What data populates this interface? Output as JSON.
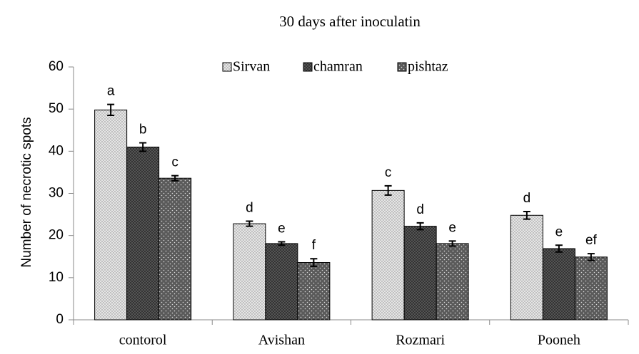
{
  "chart_data": {
    "type": "bar",
    "title": "30 days after inoculatin",
    "ylabel": "Number of necrotic spots",
    "categories": [
      "contorol",
      "Avishan",
      "Rozmari",
      "Pooneh"
    ],
    "series": [
      {
        "name": "Sirvan",
        "color": "#d9d9d9",
        "values": [
          49.8,
          22.8,
          30.7,
          24.8
        ],
        "errors": [
          1.3,
          0.6,
          1.1,
          0.9
        ],
        "letters": [
          "a",
          "d",
          "c",
          "d"
        ]
      },
      {
        "name": "chamran",
        "color": "#404040",
        "values": [
          41,
          18.1,
          22.2,
          16.9
        ],
        "errors": [
          1.0,
          0.4,
          0.8,
          0.8
        ],
        "letters": [
          "b",
          "e",
          "d",
          "e"
        ]
      },
      {
        "name": "pishtaz",
        "color": "#5a5a5a",
        "values": [
          33.6,
          13.6,
          18.1,
          14.9
        ],
        "errors": [
          0.6,
          0.9,
          0.6,
          0.8
        ],
        "letters": [
          "c",
          "f",
          "e",
          "ef"
        ]
      }
    ],
    "ylim": [
      0,
      60
    ],
    "yticks": [
      0,
      10,
      20,
      30,
      40,
      50,
      60
    ],
    "legend": "top"
  }
}
